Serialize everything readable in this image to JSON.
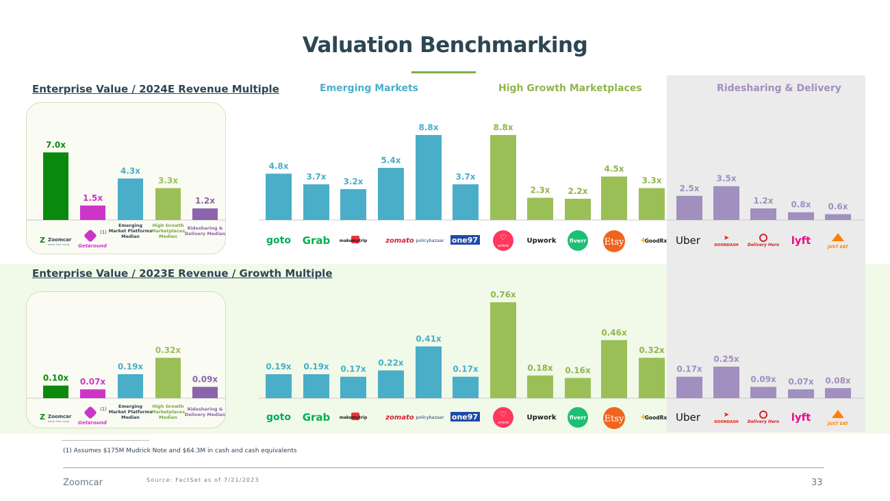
{
  "title": "Valuation Benchmarking",
  "groups": {
    "emerging": "Emerging Markets",
    "high_growth": "High Growth Marketplaces",
    "ridesharing": "Ridesharing & Delivery"
  },
  "colors": {
    "zoomcar": "#0a8a0d",
    "getaround": "#cc36c8",
    "emerging": "#4aaec8",
    "high_growth": "#9bbf57",
    "ridesharing": "#a08fbf",
    "ridesharing_median": "#8b64ab",
    "title": "#2d4654",
    "accent_rule": "#77b14a"
  },
  "logos": {
    "zoomcar": "Zoomcar",
    "zoomcar_tagline": "Never Stop Living",
    "getaround": "Getaround",
    "getaround_footnote": "(1)",
    "goto": "goto",
    "grab": "Grab",
    "makemytrip": "makemytrip",
    "zomato": "zomato",
    "policybazaar": "policybazaar",
    "one97": "one97",
    "airbnb": "airbnb",
    "upwork": "Upwork",
    "fiverr": "fiverr",
    "etsy": "Etsy",
    "goodrx": "GoodRx",
    "uber": "Uber",
    "doordash": "DOORDASH",
    "deliveryhero": "Delivery Hero",
    "lyft": "lyft",
    "justeat": "JUST EAT"
  },
  "chart_data": [
    {
      "type": "bar",
      "title": "Enterprise Value / 2024E Revenue Multiple",
      "medians": {
        "categories": [
          "Zoomcar",
          "Getaround",
          "Emerging Market Platforms Median",
          "High Growth Marketplaces Median",
          "Ridesharing & Delivery Median"
        ],
        "values": [
          7.0,
          1.5,
          4.3,
          3.3,
          1.2
        ],
        "labels": [
          "7.0x",
          "1.5x",
          "4.3x",
          "3.3x",
          "1.2x"
        ]
      },
      "companies": {
        "categories": [
          "goto",
          "Grab",
          "makemytrip",
          "zomato",
          "policybazaar",
          "one97",
          "airbnb",
          "Upwork",
          "fiverr",
          "Etsy",
          "GoodRx",
          "Uber",
          "DoorDash",
          "Delivery Hero",
          "lyft",
          "Just Eat"
        ],
        "groups": [
          "emerging",
          "emerging",
          "emerging",
          "emerging",
          "emerging",
          "emerging",
          "high_growth",
          "high_growth",
          "high_growth",
          "high_growth",
          "high_growth",
          "ridesharing",
          "ridesharing",
          "ridesharing",
          "ridesharing",
          "ridesharing"
        ],
        "values": [
          4.8,
          3.7,
          3.2,
          5.4,
          8.8,
          3.7,
          8.8,
          2.3,
          2.2,
          4.5,
          3.3,
          2.5,
          3.5,
          1.2,
          0.8,
          0.6
        ],
        "labels": [
          "4.8x",
          "3.7x",
          "3.2x",
          "5.4x",
          "8.8x",
          "3.7x",
          "8.8x",
          "2.3x",
          "2.2x",
          "4.5x",
          "3.3x",
          "2.5x",
          "3.5x",
          "1.2x",
          "0.8x",
          "0.6x"
        ]
      },
      "ylim": [
        0,
        8.8
      ]
    },
    {
      "type": "bar",
      "title": "Enterprise Value / 2023E Revenue / Growth Multiple",
      "medians": {
        "categories": [
          "Zoomcar",
          "Getaround",
          "Emerging Market Platforms Median",
          "High Growth Marketplaces Median",
          "Ridesharing & Delivery Median"
        ],
        "values": [
          0.1,
          0.07,
          0.19,
          0.32,
          0.09
        ],
        "labels": [
          "0.10x",
          "0.07x",
          "0.19x",
          "0.32x",
          "0.09x"
        ]
      },
      "companies": {
        "categories": [
          "goto",
          "Grab",
          "makemytrip",
          "zomato",
          "policybazaar",
          "one97",
          "airbnb",
          "Upwork",
          "fiverr",
          "Etsy",
          "GoodRx",
          "Uber",
          "DoorDash",
          "Delivery Hero",
          "lyft",
          "Just Eat"
        ],
        "groups": [
          "emerging",
          "emerging",
          "emerging",
          "emerging",
          "emerging",
          "emerging",
          "high_growth",
          "high_growth",
          "high_growth",
          "high_growth",
          "high_growth",
          "ridesharing",
          "ridesharing",
          "ridesharing",
          "ridesharing",
          "ridesharing"
        ],
        "values": [
          0.19,
          0.19,
          0.17,
          0.22,
          0.41,
          0.17,
          0.76,
          0.18,
          0.16,
          0.46,
          0.32,
          0.17,
          0.25,
          0.09,
          0.07,
          0.08
        ],
        "labels": [
          "0.19x",
          "0.19x",
          "0.17x",
          "0.22x",
          "0.41x",
          "0.17x",
          "0.76x",
          "0.18x",
          "0.16x",
          "0.46x",
          "0.32x",
          "0.17x",
          "0.25x",
          "0.09x",
          "0.07x",
          "0.08x"
        ]
      },
      "ylim": [
        0,
        0.76
      ]
    }
  ],
  "median_labels": [
    [
      "Emerging",
      "Market Platforms",
      "Median"
    ],
    [
      "High Growth",
      "Marketplaces",
      "Median"
    ],
    [
      "Ridesharing &",
      "Delivery Median"
    ]
  ],
  "footnote": "(1) Assumes $175M Mudrick Note and $64.3M in cash and cash equivalents",
  "footer": {
    "brand": "Zoomcar",
    "source": "Source: FactSet as of 7/21/2023",
    "page": "33"
  }
}
